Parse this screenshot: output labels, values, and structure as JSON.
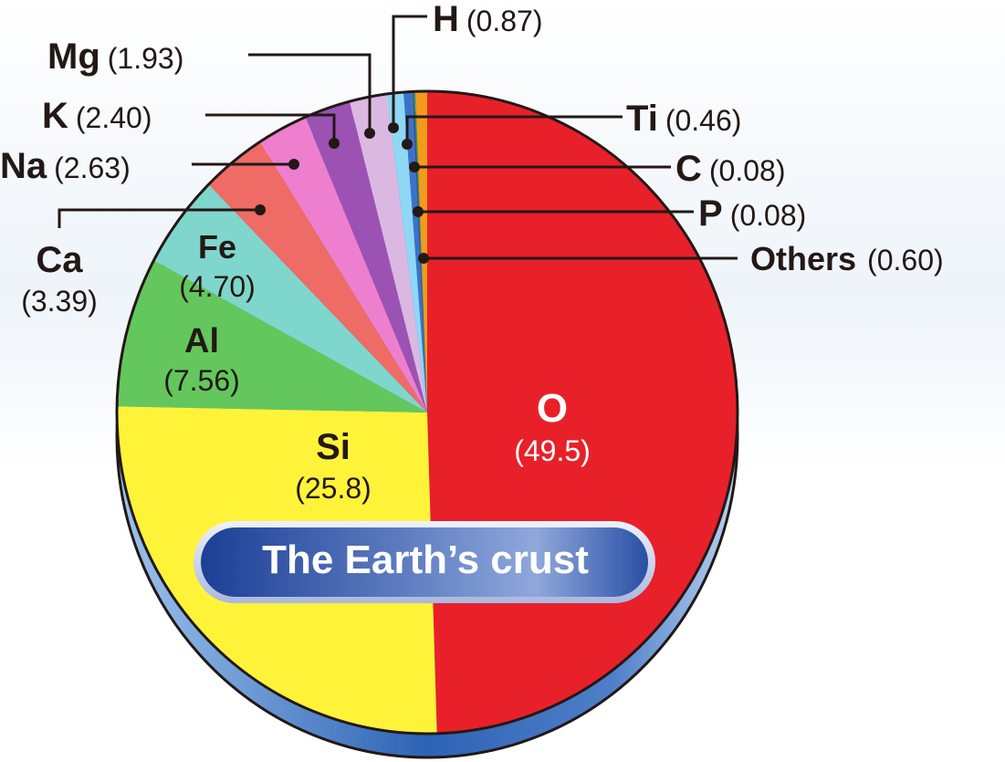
{
  "chart_data": {
    "type": "pie",
    "title": "The Earth’s crust",
    "slices": [
      {
        "symbol": "O",
        "value": 49.5,
        "value_label": "(49.5)",
        "color": "#e8202a"
      },
      {
        "symbol": "Si",
        "value": 25.8,
        "value_label": "(25.8)",
        "color": "#fff33a"
      },
      {
        "symbol": "Al",
        "value": 7.56,
        "value_label": "(7.56)",
        "color": "#63c75d"
      },
      {
        "symbol": "Fe",
        "value": 4.7,
        "value_label": "(4.70)",
        "color": "#7fd6cc"
      },
      {
        "symbol": "Ca",
        "value": 3.39,
        "value_label": "(3.39)",
        "color": "#ef6b65"
      },
      {
        "symbol": "Na",
        "value": 2.63,
        "value_label": "(2.63)",
        "color": "#ee7fcf"
      },
      {
        "symbol": "K",
        "value": 2.4,
        "value_label": "(2.40)",
        "color": "#9b52b3"
      },
      {
        "symbol": "Mg",
        "value": 1.93,
        "value_label": "(1.93)",
        "color": "#dbb8e2"
      },
      {
        "symbol": "H",
        "value": 0.87,
        "value_label": "(0.87)",
        "color": "#8ed8f5"
      },
      {
        "symbol": "Ti",
        "value": 0.46,
        "value_label": "(0.46)",
        "color": "#3b72c9"
      },
      {
        "symbol": "C",
        "value": 0.08,
        "value_label": "(0.08)",
        "color": "#3e4a8f"
      },
      {
        "symbol": "P",
        "value": 0.08,
        "value_label": "(0.08)",
        "color": "#2e9b4f"
      },
      {
        "symbol": "Others",
        "value": 0.6,
        "value_label": "(0.60)",
        "color": "#f39a1d"
      }
    ]
  }
}
